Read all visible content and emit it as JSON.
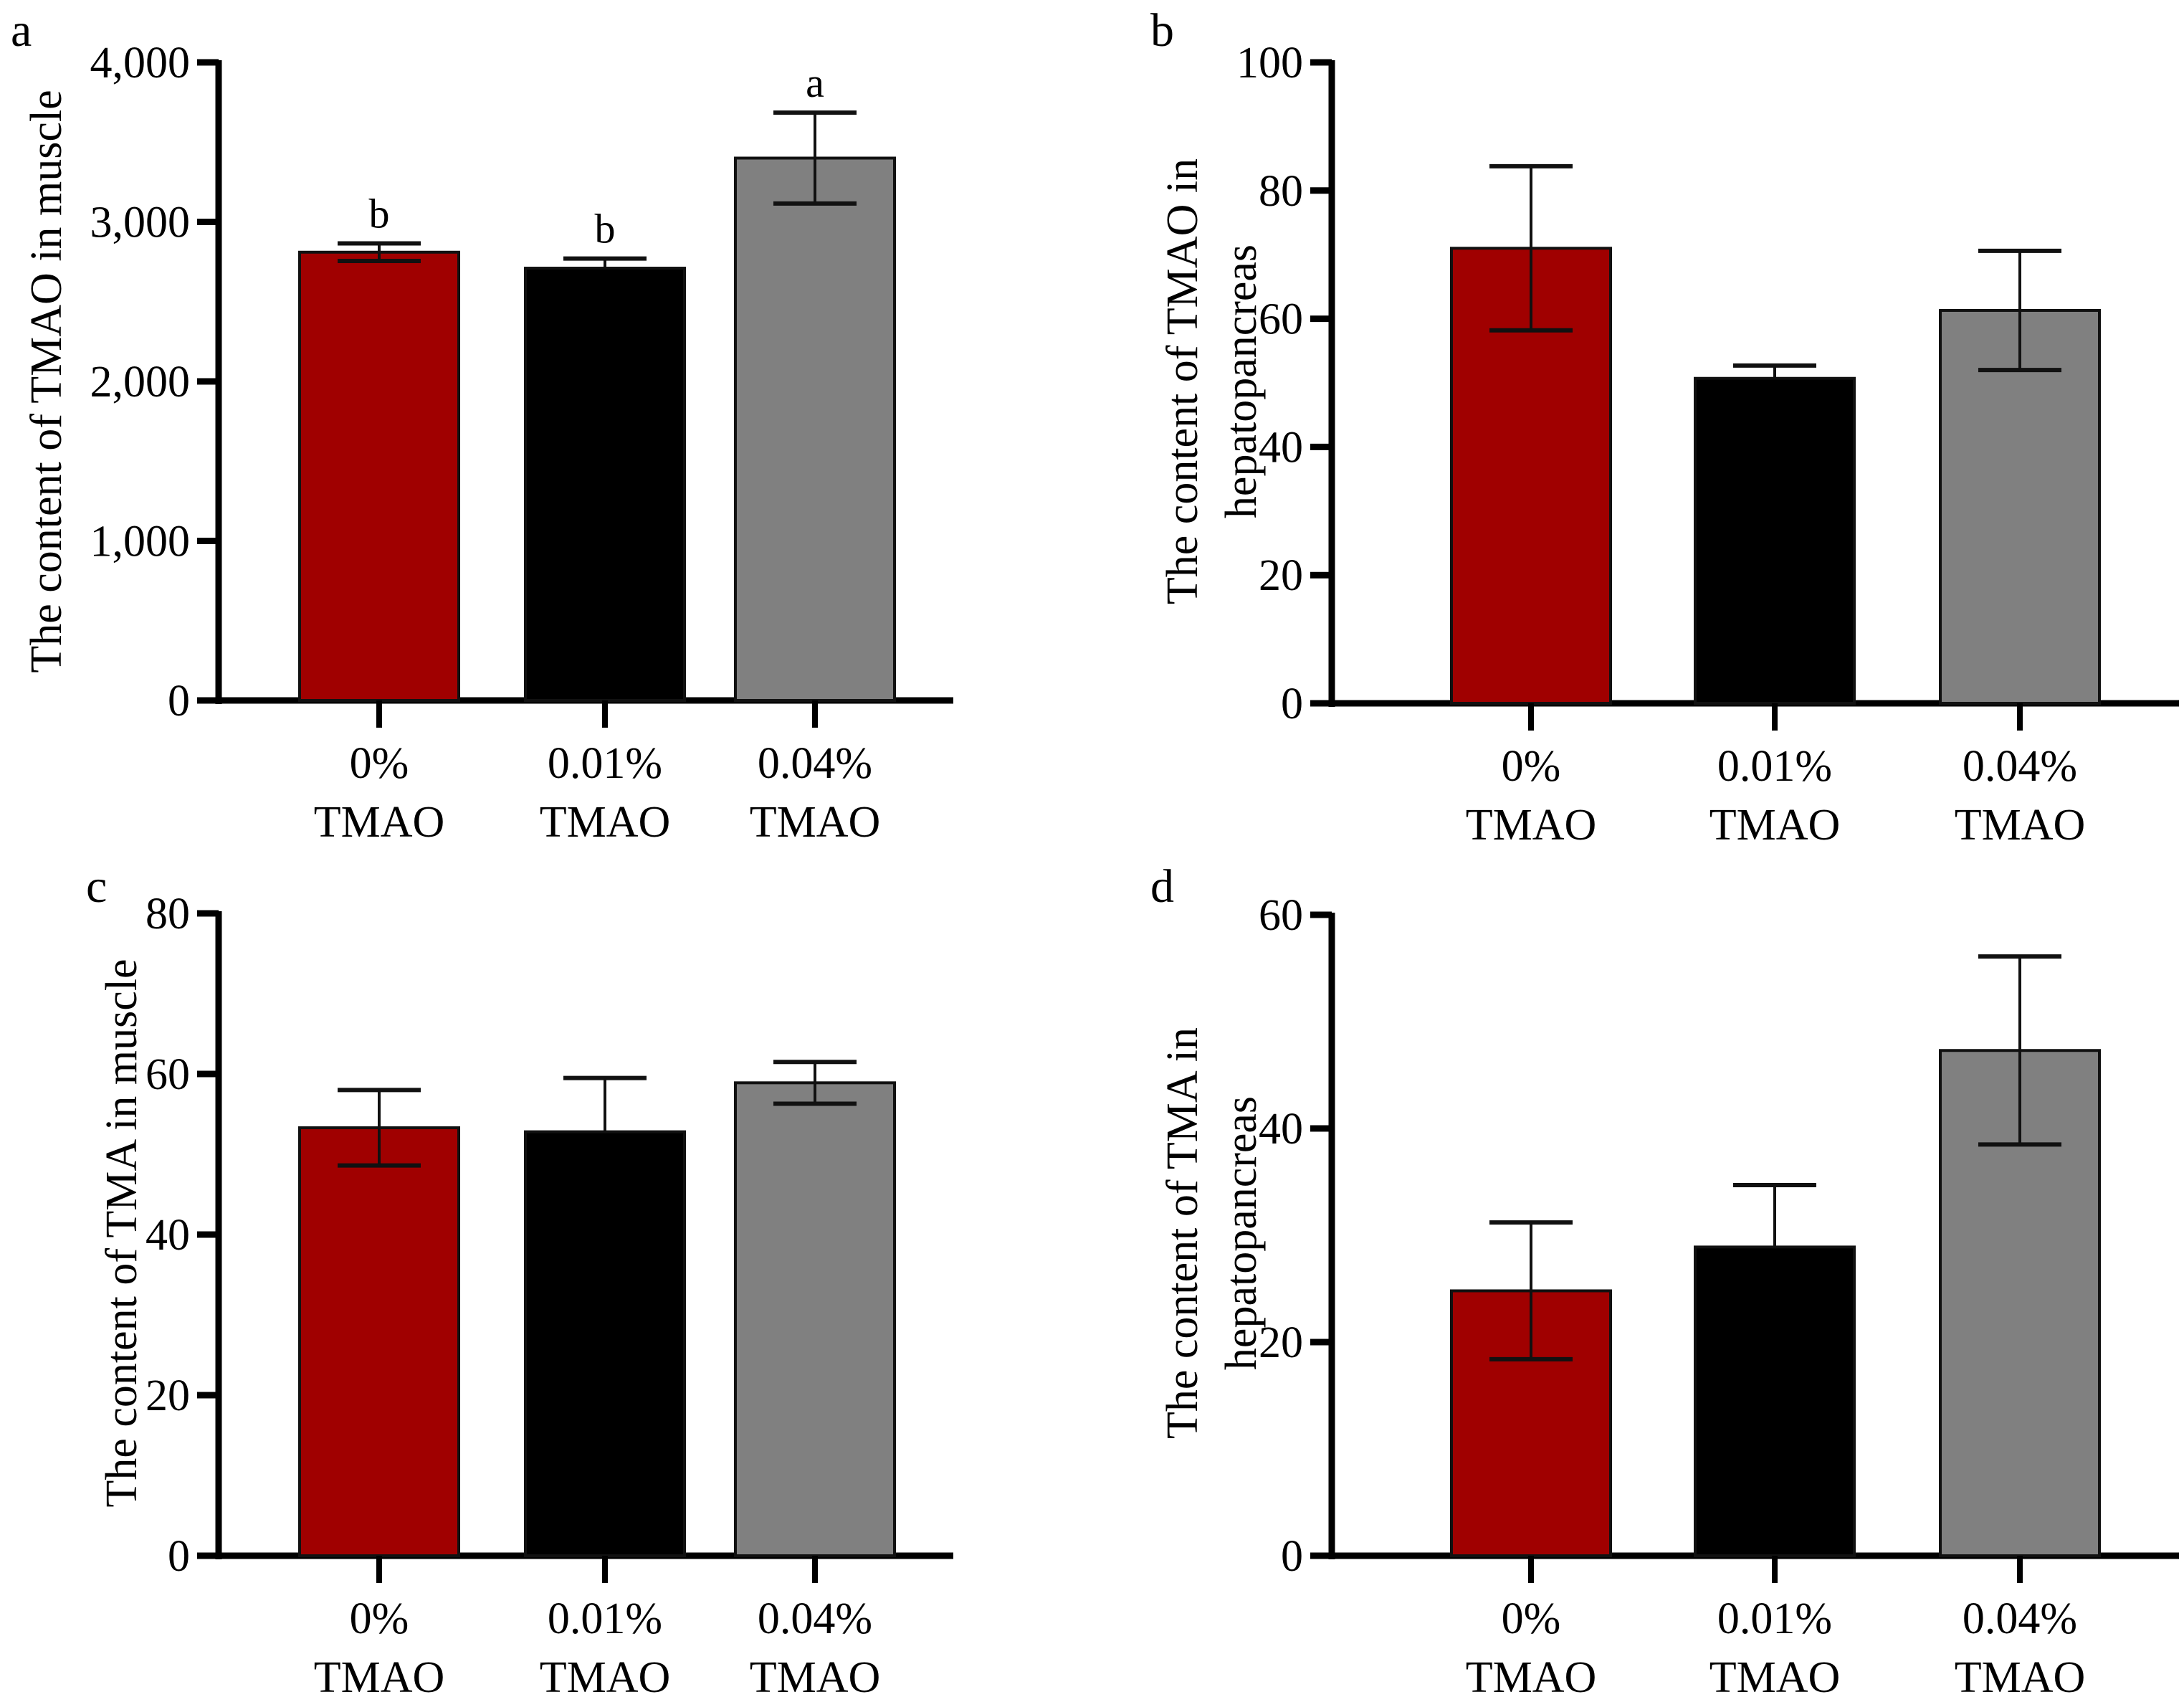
{
  "chart_data": [
    {
      "type": "bar",
      "panel": "a",
      "ylabel": "The content of TMAO in muscle",
      "ylabel_lines": [
        "The content of TMAO in muscle"
      ],
      "ylim": [
        0,
        4000
      ],
      "yticks": [
        0,
        1000,
        2000,
        3000,
        4000
      ],
      "ytick_labels": [
        "0",
        "1,000",
        "2,000",
        "3,000",
        "4,000"
      ],
      "categories": [
        [
          "0%",
          "TMAO"
        ],
        [
          "0.01%",
          "TMAO"
        ],
        [
          "0.04%",
          "TMAO"
        ]
      ],
      "values": [
        2810,
        2710,
        3400
      ],
      "errors": [
        55,
        60,
        285
      ],
      "error_style": [
        "both",
        "up",
        "both"
      ],
      "annotations": [
        "b",
        "b",
        "a"
      ],
      "colors": [
        "#a00000",
        "#000000",
        "#808080"
      ]
    },
    {
      "type": "bar",
      "panel": "b",
      "ylabel": "The content of TMAO in hepatopancreas",
      "ylabel_lines": [
        "The content of TMAO in",
        "hepatopancreas"
      ],
      "ylim": [
        0,
        100
      ],
      "yticks": [
        0,
        20,
        40,
        60,
        80,
        100
      ],
      "ytick_labels": [
        "0",
        "20",
        "40",
        "60",
        "80",
        "100"
      ],
      "categories": [
        [
          "0%",
          "TMAO"
        ],
        [
          "0.01%",
          "TMAO"
        ],
        [
          "0.04%",
          "TMAO"
        ]
      ],
      "values": [
        71.0,
        50.7,
        61.3
      ],
      "errors": [
        12.8,
        2.0,
        9.3
      ],
      "error_style": [
        "both",
        "up",
        "both"
      ],
      "annotations": [
        "",
        "",
        ""
      ],
      "colors": [
        "#a00000",
        "#000000",
        "#808080"
      ]
    },
    {
      "type": "bar",
      "panel": "c",
      "ylabel": "The content of TMA in muscle",
      "ylabel_lines": [
        "The content of TMA in muscle"
      ],
      "ylim": [
        0,
        80
      ],
      "yticks": [
        0,
        20,
        40,
        60,
        80
      ],
      "ytick_labels": [
        "0",
        "20",
        "40",
        "60",
        "80"
      ],
      "categories": [
        [
          "0%",
          "TMAO"
        ],
        [
          "0.01%",
          "TMAO"
        ],
        [
          "0.04%",
          "TMAO"
        ]
      ],
      "values": [
        53.3,
        52.8,
        58.9
      ],
      "errors": [
        4.7,
        6.7,
        2.6
      ],
      "error_style": [
        "both",
        "up",
        "both"
      ],
      "annotations": [
        "",
        "",
        ""
      ],
      "colors": [
        "#a00000",
        "#000000",
        "#808080"
      ]
    },
    {
      "type": "bar",
      "panel": "d",
      "ylabel": "The content of TMA in hepatopancreas",
      "ylabel_lines": [
        "The content of TMA in",
        "hepatopancreas"
      ],
      "ylim": [
        0,
        60
      ],
      "yticks": [
        0,
        20,
        40,
        60
      ],
      "ytick_labels": [
        "0",
        "20",
        "40",
        "60"
      ],
      "categories": [
        [
          "0%",
          "TMAO"
        ],
        [
          "0.01%",
          "TMAO"
        ],
        [
          "0.04%",
          "TMAO"
        ]
      ],
      "values": [
        24.8,
        28.9,
        47.3
      ],
      "errors": [
        6.4,
        5.8,
        8.8
      ],
      "error_style": [
        "both",
        "up",
        "both"
      ],
      "annotations": [
        "",
        "",
        ""
      ],
      "colors": [
        "#a00000",
        "#000000",
        "#808080"
      ]
    }
  ]
}
